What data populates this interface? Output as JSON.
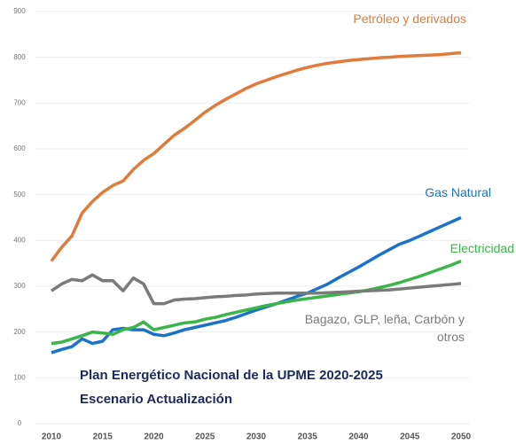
{
  "chart_data": {
    "type": "line",
    "x": [
      2010,
      2011,
      2012,
      2013,
      2014,
      2015,
      2016,
      2017,
      2018,
      2019,
      2020,
      2021,
      2022,
      2023,
      2024,
      2025,
      2026,
      2027,
      2028,
      2029,
      2030,
      2031,
      2032,
      2033,
      2034,
      2035,
      2036,
      2037,
      2038,
      2039,
      2040,
      2041,
      2042,
      2043,
      2044,
      2045,
      2046,
      2047,
      2048,
      2049,
      2050
    ],
    "series": [
      {
        "name": "Petróleo y derivados",
        "color": "#e07b3c",
        "values": [
          355,
          385,
          410,
          460,
          485,
          505,
          520,
          530,
          555,
          575,
          590,
          610,
          630,
          645,
          662,
          680,
          695,
          708,
          720,
          732,
          742,
          750,
          758,
          765,
          772,
          778,
          783,
          787,
          790,
          793,
          795,
          797,
          799,
          800,
          802,
          803,
          804,
          805,
          806,
          808,
          810
        ]
      },
      {
        "name": "Gas Natural",
        "color": "#1a73c9",
        "values": [
          155,
          162,
          168,
          185,
          175,
          180,
          205,
          208,
          205,
          205,
          195,
          192,
          198,
          205,
          210,
          215,
          220,
          225,
          232,
          240,
          248,
          255,
          262,
          270,
          278,
          285,
          295,
          305,
          318,
          330,
          342,
          355,
          368,
          380,
          392,
          400,
          410,
          420,
          430,
          440,
          450
        ]
      },
      {
        "name": "Electricidad",
        "color": "#3bb54a",
        "values": [
          175,
          178,
          185,
          192,
          200,
          198,
          195,
          205,
          210,
          222,
          205,
          210,
          215,
          220,
          222,
          228,
          232,
          238,
          243,
          248,
          253,
          258,
          262,
          266,
          270,
          273,
          276,
          279,
          282,
          285,
          288,
          292,
          297,
          302,
          308,
          315,
          322,
          330,
          338,
          346,
          355
        ]
      },
      {
        "name": "Bagazo, GLP, leña, Carbón y otros",
        "color": "#7a7a7a",
        "values": [
          290,
          305,
          315,
          312,
          325,
          312,
          312,
          290,
          318,
          305,
          262,
          262,
          270,
          272,
          273,
          275,
          277,
          278,
          280,
          281,
          283,
          284,
          285,
          285,
          285,
          285,
          285,
          286,
          287,
          288,
          289,
          290,
          291,
          292,
          294,
          296,
          298,
          300,
          302,
          304,
          306
        ]
      }
    ],
    "annotations": [
      "Plan Energético Nacional de la UPME 2020-2025",
      "Escenario Actualización"
    ],
    "xlim": [
      2010,
      2050
    ],
    "xticks": [
      2010,
      2015,
      2020,
      2025,
      2030,
      2035,
      2040,
      2045,
      2050
    ],
    "ylim": [
      0,
      900
    ],
    "yticks": [
      0,
      100,
      200,
      300,
      400,
      500,
      600,
      700,
      800,
      900
    ],
    "grid": true
  }
}
